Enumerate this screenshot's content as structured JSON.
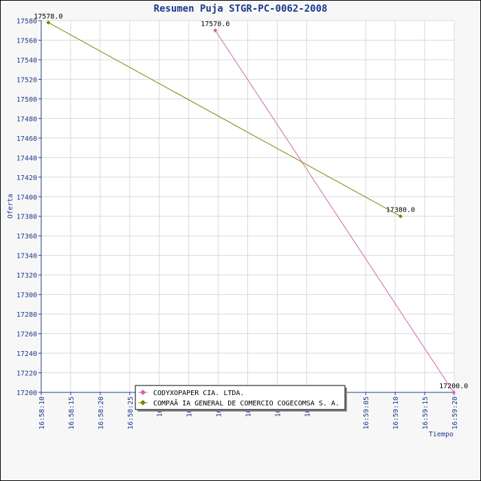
{
  "chart_data": {
    "type": "line",
    "title": "Resumen Puja STGR-PC-0062-2008",
    "xlabel": "Tiempo",
    "ylabel": "Oferta",
    "ylim": [
      17200,
      17580
    ],
    "y_step": 20,
    "x_tick_labels": [
      "16:58:10",
      "16:58:15",
      "16:58:20",
      "16:58:25",
      "16:58",
      "16:58",
      "16:58",
      "16:58",
      "16:58",
      "16:59",
      "16:59:05",
      "16:59:10",
      "16:59:15",
      "16:59:20"
    ],
    "x_tick_seconds": [
      0,
      5,
      10,
      15,
      20,
      25,
      30,
      35,
      40,
      45,
      55,
      60,
      65,
      70
    ],
    "x_range_seconds": [
      0,
      70
    ],
    "grid": true,
    "legend_placement": "bottom-center",
    "series": [
      {
        "name": "CODYXOPAPER CIA. LTDA.",
        "color": "#cc66aa",
        "x_seconds": [
          29.5,
          69.9
        ],
        "values": [
          17570.0,
          17200.0
        ],
        "labels": [
          "17570.0",
          "17200.0"
        ]
      },
      {
        "name": "COMPAÃ IA GENERAL DE COMERCIO COGECOMSA S. A.",
        "color": "#808000",
        "x_seconds": [
          1.2,
          60.9
        ],
        "values": [
          17578.0,
          17380.0
        ],
        "labels": [
          "17578.0",
          "17380.0"
        ]
      }
    ]
  }
}
